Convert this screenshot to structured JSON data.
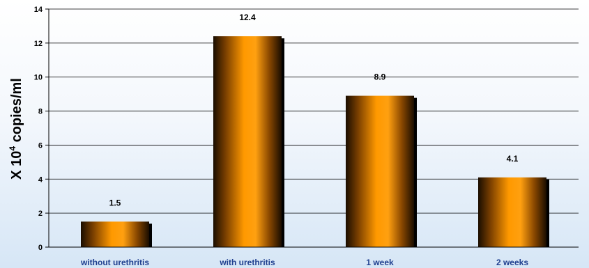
{
  "chart_data": {
    "type": "bar",
    "categories": [
      "without urethritis",
      "with urethritis",
      "1 week",
      "2 weeks"
    ],
    "values": [
      1.5,
      12.4,
      8.9,
      4.1
    ],
    "data_labels": [
      "1.5",
      "12.4",
      "8.9",
      "4.1"
    ],
    "title": "",
    "xlabel": "",
    "ylabel": {
      "prefix": "X 10",
      "superscript": "4",
      "suffix": " copies/ml"
    },
    "ylim": [
      0,
      14
    ],
    "yticks": [
      0,
      2,
      4,
      6,
      8,
      10,
      12,
      14
    ],
    "grid": true,
    "colors": {
      "bar_light": "#ff9900",
      "bar_dark": "#1a0d00",
      "grid": "#000000",
      "category_text": "#1f3f8f"
    }
  }
}
